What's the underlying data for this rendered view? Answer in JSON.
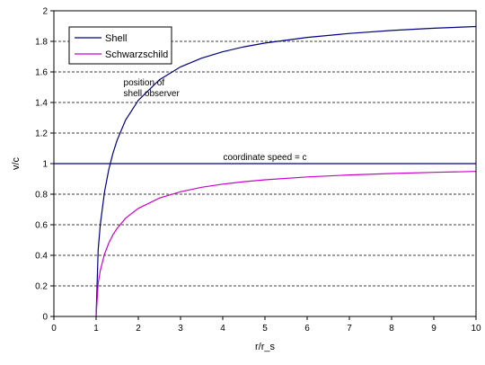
{
  "chart_data": {
    "type": "line",
    "xlabel": "r/r_s",
    "ylabel": "v/c",
    "xlim": [
      0,
      10
    ],
    "ylim": [
      0,
      2
    ],
    "x_ticks": [
      "0",
      "1",
      "2",
      "3",
      "4",
      "5",
      "6",
      "7",
      "8",
      "9",
      "10"
    ],
    "y_ticks": [
      "0",
      "0.2",
      "0.4",
      "0.6",
      "0.8",
      "1",
      "1.2",
      "1.4",
      "1.6",
      "1.8",
      "2"
    ],
    "grid": "horizontal dashed",
    "legend_position": "top-left",
    "series": [
      {
        "name": "Shell",
        "color": "#000080",
        "x": [
          1,
          1.05,
          1.1,
          1.2,
          1.3,
          1.4,
          1.5,
          1.7,
          2,
          2.5,
          3,
          3.5,
          4,
          4.5,
          5,
          6,
          7,
          8,
          9,
          10
        ],
        "y": [
          0,
          0.436,
          0.603,
          0.816,
          0.961,
          1.069,
          1.155,
          1.286,
          1.414,
          1.549,
          1.633,
          1.69,
          1.732,
          1.764,
          1.789,
          1.826,
          1.852,
          1.871,
          1.886,
          1.897
        ]
      },
      {
        "name": "Schwarzschild",
        "color": "#cc00cc",
        "x": [
          1,
          1.05,
          1.1,
          1.2,
          1.3,
          1.4,
          1.5,
          1.7,
          2,
          2.5,
          3,
          3.5,
          4,
          4.5,
          5,
          6,
          7,
          8,
          9,
          10
        ],
        "y": [
          0,
          0.218,
          0.302,
          0.408,
          0.48,
          0.535,
          0.577,
          0.643,
          0.707,
          0.775,
          0.816,
          0.845,
          0.866,
          0.882,
          0.894,
          0.913,
          0.926,
          0.935,
          0.943,
          0.949
        ]
      }
    ],
    "reference_line": {
      "y": 1,
      "color": "#000080",
      "label": "coordinate speed = c"
    },
    "annotations": [
      {
        "text_lines": [
          "position of",
          "shell observer"
        ],
        "x": 1.65,
        "y": 1.5
      }
    ]
  }
}
